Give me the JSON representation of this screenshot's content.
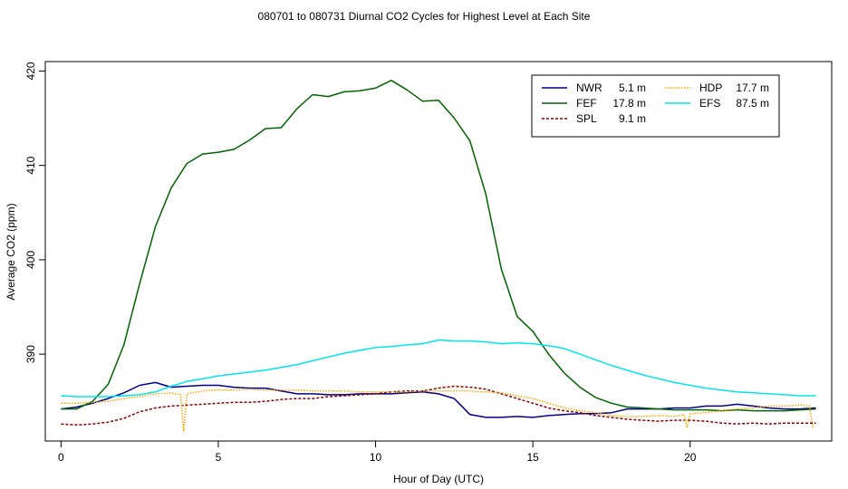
{
  "chart_data": {
    "type": "line",
    "title": "080701  to  080731 Diurnal CO2 Cycles for Highest Level at Each Site",
    "xlabel": "Hour of Day (UTC)",
    "ylabel": "Average CO2 (ppm)",
    "xlim": [
      -0.5,
      24.5
    ],
    "ylim": [
      380.8,
      421.0
    ],
    "xticks": [
      0,
      5,
      10,
      15,
      20
    ],
    "yticks": [
      390,
      400,
      410,
      420
    ],
    "grid": false,
    "legend_position": "top-right",
    "legend": [
      {
        "name": "NWR",
        "height": "5.1 m",
        "color": "#00008B",
        "style": "solid"
      },
      {
        "name": "FEF",
        "height": "17.8 m",
        "color": "#006400",
        "style": "solid"
      },
      {
        "name": "SPL",
        "height": "9.1 m",
        "color": "#8B0000",
        "style": "dashed"
      },
      {
        "name": "HDP",
        "height": "17.7 m",
        "color": "#FFA500",
        "style": "dotted"
      },
      {
        "name": "EFS",
        "height": "87.5 m",
        "color": "#00E5EE",
        "style": "solid"
      }
    ],
    "series": [
      {
        "name": "NWR",
        "color": "#00008B",
        "x": [
          0,
          0.5,
          1,
          1.5,
          2,
          2.5,
          3,
          3.5,
          4,
          4.5,
          5,
          5.5,
          6,
          6.5,
          7,
          7.5,
          8,
          8.5,
          9,
          9.5,
          10,
          10.5,
          11,
          11.5,
          12,
          12.5,
          13,
          13.5,
          14,
          14.5,
          15,
          15.5,
          16,
          16.5,
          17,
          17.5,
          18,
          18.5,
          19,
          19.5,
          20,
          20.5,
          21,
          21.5,
          22,
          22.5,
          23,
          23.5,
          24
        ],
        "y": [
          384.2,
          384.4,
          384.8,
          385.3,
          385.9,
          386.7,
          387.0,
          386.5,
          386.6,
          386.7,
          386.7,
          386.5,
          386.4,
          386.4,
          386.1,
          385.8,
          385.8,
          385.7,
          385.7,
          385.8,
          385.8,
          385.8,
          385.9,
          386.0,
          385.8,
          385.3,
          383.6,
          383.3,
          383.3,
          383.4,
          383.3,
          383.5,
          383.6,
          383.7,
          383.7,
          383.8,
          384.2,
          384.2,
          384.2,
          384.3,
          384.3,
          384.5,
          384.5,
          384.7,
          384.5,
          384.3,
          384.2,
          384.2,
          384.3
        ]
      },
      {
        "name": "FEF",
        "color": "#006400",
        "x": [
          0,
          0.5,
          1,
          1.5,
          2,
          2.5,
          3,
          3.5,
          4,
          4.5,
          5,
          5.5,
          6,
          6.5,
          7,
          7.5,
          8,
          8.5,
          9,
          9.5,
          10,
          10.5,
          11,
          11.5,
          12,
          12.5,
          13,
          13.5,
          14,
          14.5,
          15,
          15.5,
          16,
          16.5,
          17,
          17.5,
          18,
          18.5,
          19,
          19.5,
          20,
          20.5,
          21,
          21.5,
          22,
          22.5,
          23,
          23.5,
          24
        ],
        "y": [
          384.2,
          384.2,
          385.0,
          386.8,
          391.0,
          397.5,
          403.5,
          407.6,
          410.2,
          411.2,
          411.4,
          411.7,
          412.7,
          413.9,
          414.0,
          416.0,
          417.5,
          417.3,
          417.8,
          417.9,
          418.2,
          419.0,
          418.0,
          416.8,
          416.9,
          415.0,
          412.6,
          407.0,
          399.0,
          394.0,
          392.4,
          390.0,
          388.0,
          386.5,
          385.4,
          384.8,
          384.4,
          384.3,
          384.2,
          384.1,
          384.1,
          384.1,
          384.0,
          384.1,
          384.0,
          384.0,
          384.0,
          384.1,
          384.2
        ]
      },
      {
        "name": "SPL",
        "color": "#8B0000",
        "x": [
          0,
          0.5,
          1,
          1.5,
          2,
          2.5,
          3,
          3.5,
          4,
          4.5,
          5,
          5.5,
          6,
          6.5,
          7,
          7.5,
          8,
          8.5,
          9,
          9.5,
          10,
          10.5,
          11,
          11.5,
          12,
          12.5,
          13,
          13.5,
          14,
          14.5,
          15,
          15.5,
          16,
          16.5,
          17,
          17.5,
          18,
          18.5,
          19,
          19.5,
          20,
          20.5,
          21,
          21.5,
          22,
          22.5,
          23,
          23.5,
          24
        ],
        "y": [
          382.6,
          382.5,
          382.6,
          382.8,
          383.2,
          383.9,
          384.3,
          384.5,
          384.6,
          384.7,
          384.8,
          384.9,
          384.9,
          385.0,
          385.2,
          385.3,
          385.3,
          385.5,
          385.6,
          385.7,
          385.8,
          386.0,
          386.1,
          386.1,
          386.4,
          386.6,
          386.5,
          386.3,
          385.8,
          385.3,
          384.8,
          384.3,
          384.0,
          383.8,
          383.5,
          383.3,
          383.1,
          383.0,
          382.9,
          383.0,
          383.0,
          382.9,
          382.7,
          382.6,
          382.7,
          382.6,
          382.7,
          382.7,
          382.7
        ]
      },
      {
        "name": "HDP",
        "color": "#FFA500",
        "x": [
          0,
          0.5,
          1,
          1.5,
          2,
          2.5,
          3,
          3.5,
          3.8,
          3.9,
          4.0,
          4.5,
          5,
          5.5,
          6,
          6.5,
          7,
          7.5,
          8,
          8.5,
          9,
          9.5,
          10,
          10.5,
          11,
          11.5,
          12,
          12.5,
          13,
          13.5,
          14,
          14.5,
          15,
          15.5,
          16,
          16.5,
          17,
          17.5,
          18,
          18.5,
          19,
          19.5,
          19.8,
          19.9,
          20.0,
          20.5,
          21,
          21.5,
          22,
          22.5,
          23,
          23.5,
          23.8,
          23.9
        ],
        "y": [
          384.8,
          384.8,
          384.9,
          385.0,
          385.3,
          385.5,
          385.8,
          385.9,
          385.7,
          381.8,
          385.8,
          386.1,
          386.2,
          386.2,
          386.3,
          386.2,
          386.2,
          386.2,
          386.1,
          386.1,
          386.1,
          386.0,
          386.0,
          386.0,
          386.0,
          386.1,
          386.1,
          386.1,
          386.1,
          386.0,
          385.9,
          385.6,
          385.3,
          384.8,
          384.3,
          384.0,
          383.8,
          383.5,
          383.4,
          383.4,
          383.5,
          383.4,
          383.6,
          382.2,
          383.7,
          383.8,
          384.0,
          384.2,
          384.3,
          384.5,
          384.5,
          384.6,
          384.5,
          382.2
        ]
      },
      {
        "name": "EFS",
        "color": "#00E5EE",
        "x": [
          0,
          0.5,
          1,
          1.5,
          2,
          2.5,
          3,
          3.5,
          4,
          4.5,
          5,
          5.5,
          6,
          6.5,
          7,
          7.5,
          8,
          8.5,
          9,
          9.5,
          10,
          10.5,
          11,
          11.5,
          12,
          12.5,
          13,
          13.5,
          14,
          14.5,
          15,
          15.5,
          16,
          16.5,
          17,
          17.5,
          18,
          18.5,
          19,
          19.5,
          20,
          20.5,
          21,
          21.5,
          22,
          22.5,
          23,
          23.5,
          24
        ],
        "y": [
          385.6,
          385.5,
          385.5,
          385.5,
          385.6,
          385.7,
          386.0,
          386.6,
          387.1,
          387.4,
          387.7,
          387.9,
          388.1,
          388.3,
          388.6,
          388.9,
          389.3,
          389.7,
          390.1,
          390.4,
          390.7,
          390.8,
          391.0,
          391.1,
          391.5,
          391.4,
          391.4,
          391.3,
          391.1,
          391.2,
          391.1,
          390.9,
          390.6,
          390.0,
          389.4,
          388.8,
          388.3,
          387.8,
          387.4,
          387.0,
          386.7,
          386.4,
          386.2,
          386.0,
          385.9,
          385.8,
          385.7,
          385.6,
          385.6
        ]
      }
    ]
  }
}
